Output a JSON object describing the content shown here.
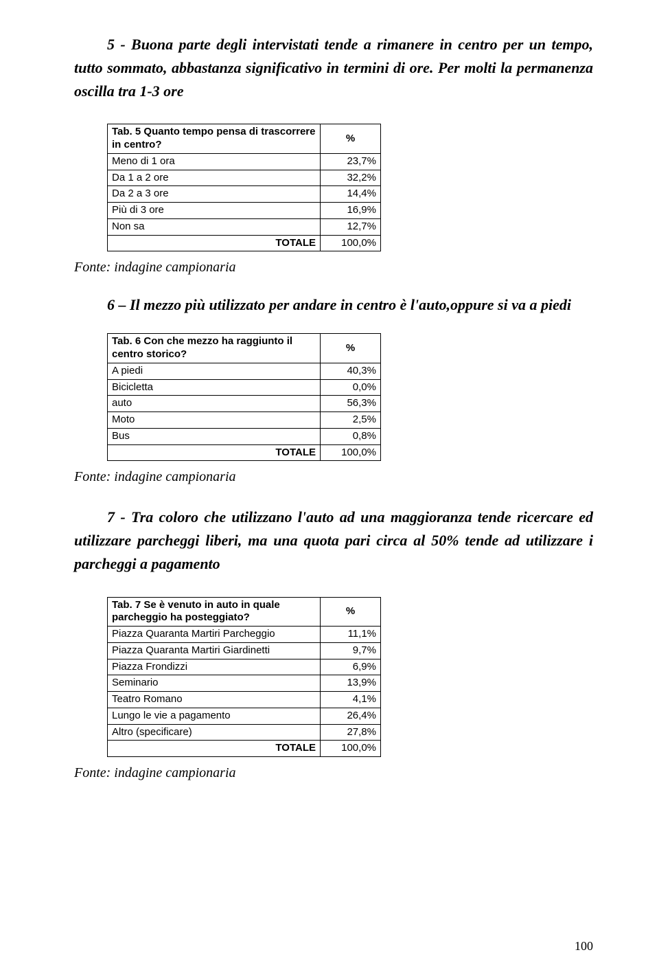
{
  "para5": {
    "lead": "5 - Buona parte degli intervistati tende a rimanere in centro per un tempo, tutto sommato, abbastanza significativo in termini di ore. Per molti la permanenza oscilla tra 1-3 ore"
  },
  "table5": {
    "title": "Tab. 5 Quanto tempo pensa di trascorrere in centro?",
    "pct_header": "%",
    "col_widths": {
      "label": 310,
      "val": 88
    },
    "rows": [
      {
        "label": "Meno di 1 ora",
        "value": "23,7%"
      },
      {
        "label": "Da 1 a 2 ore",
        "value": "32,2%"
      },
      {
        "label": "Da 2 a 3 ore",
        "value": "14,4%"
      },
      {
        "label": "Più di 3 ore",
        "value": "16,9%"
      },
      {
        "label": "Non sa",
        "value": "12,7%"
      }
    ],
    "total_label": "TOTALE",
    "total_value": "100,0%"
  },
  "source_text": "Fonte: indagine campionaria",
  "heading6": "6 – Il mezzo più utilizzato per andare in centro è l'auto,oppure si va a piedi",
  "table6": {
    "title": "Tab. 6 Con che mezzo ha raggiunto il centro storico?",
    "pct_header": "%",
    "rows": [
      {
        "label": "A piedi",
        "value": "40,3%"
      },
      {
        "label": "Bicicletta",
        "value": "0,0%"
      },
      {
        "label": "auto",
        "value": "56,3%"
      },
      {
        "label": "Moto",
        "value": "2,5%"
      },
      {
        "label": "Bus",
        "value": "0,8%"
      }
    ],
    "total_label": "TOTALE",
    "total_value": "100,0%"
  },
  "para7": {
    "lead": "7 - Tra coloro che utilizzano l'auto ad una maggioranza tende ricercare ed utilizzare parcheggi liberi, ma una quota pari circa al 50% tende ad utilizzare i parcheggi a pagamento"
  },
  "table7": {
    "title": "Tab. 7 Se è venuto in auto in quale parcheggio ha posteggiato?",
    "pct_header": "%",
    "rows": [
      {
        "label": "Piazza Quaranta Martiri Parcheggio",
        "value": "11,1%"
      },
      {
        "label": "Piazza Quaranta Martiri Giardinetti",
        "value": "9,7%"
      },
      {
        "label": "Piazza Frondizzi",
        "value": "6,9%"
      },
      {
        "label": "Seminario",
        "value": "13,9%"
      },
      {
        "label": "Teatro Romano",
        "value": "4,1%"
      },
      {
        "label": "Lungo le vie a pagamento",
        "value": "26,4%"
      },
      {
        "label": "Altro (specificare)",
        "value": "27,8%"
      }
    ],
    "total_label": "TOTALE",
    "total_value": "100,0%"
  },
  "page_number": "100",
  "colors": {
    "text": "#000000",
    "background": "#ffffff",
    "border": "#000000"
  }
}
